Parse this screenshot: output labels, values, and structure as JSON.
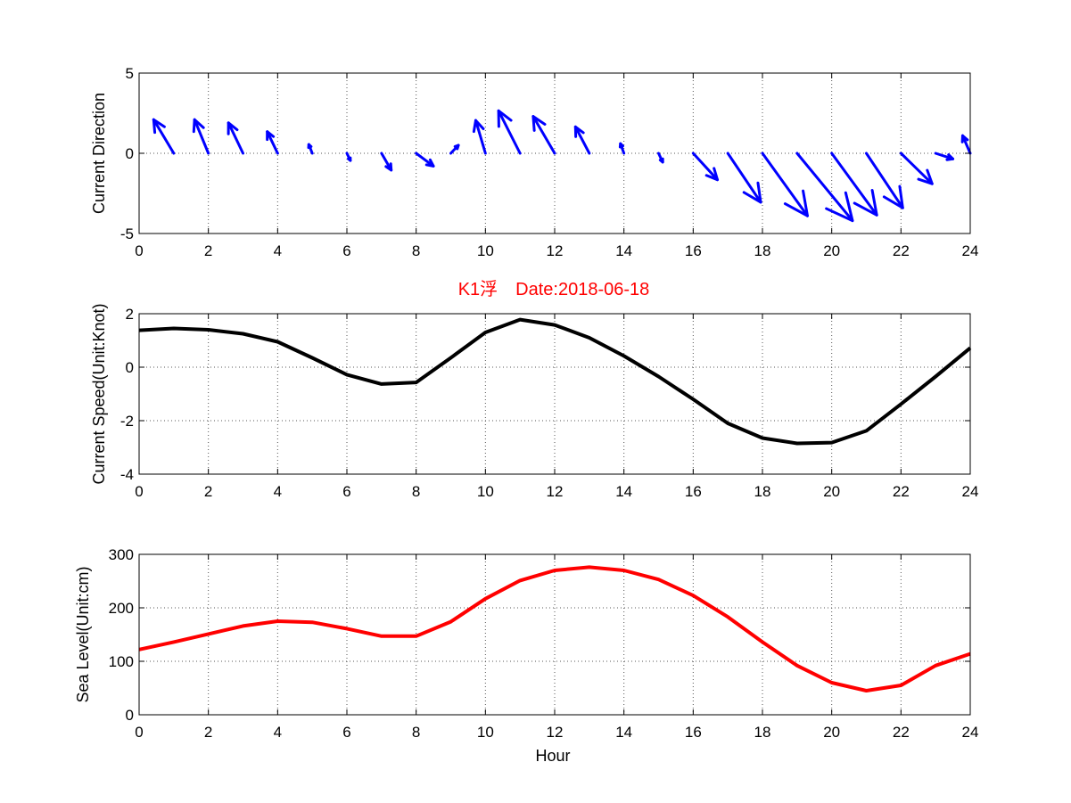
{
  "title": "K1浮　Date:2018-06-18",
  "colors": {
    "direction": "#0000ff",
    "speed": "#000000",
    "sealevel": "#ff0000",
    "title": "#ff0000"
  },
  "chart_data": [
    {
      "type": "quiver",
      "ylabel": "Current Direction",
      "xlim": [
        0,
        24
      ],
      "ylim": [
        -5,
        5
      ],
      "xticks": [
        "0",
        "2",
        "4",
        "6",
        "8",
        "10",
        "12",
        "14",
        "16",
        "18",
        "20",
        "22",
        "24"
      ],
      "yticks": [
        "5",
        "0",
        "-5"
      ],
      "grid": true,
      "x": [
        1,
        2,
        3,
        4,
        5,
        6,
        7,
        8,
        9,
        10,
        11,
        12,
        13,
        14,
        15,
        16,
        17,
        18,
        19,
        20,
        21,
        22,
        23,
        24
      ],
      "u": [
        -0.58,
        -0.4,
        -0.42,
        -0.3,
        -0.1,
        0.1,
        0.28,
        0.5,
        0.22,
        -0.28,
        -0.62,
        -0.62,
        -0.4,
        -0.1,
        0.12,
        0.7,
        0.95,
        1.3,
        1.6,
        1.3,
        1.05,
        0.9,
        0.5,
        -0.22
      ],
      "v": [
        2.1,
        2.1,
        1.9,
        1.35,
        0.55,
        -0.45,
        -1.05,
        -0.8,
        0.5,
        2.05,
        2.65,
        2.3,
        1.65,
        0.6,
        -0.55,
        -1.65,
        -3.05,
        -3.9,
        -4.2,
        -3.85,
        -3.4,
        -1.9,
        -0.35,
        1.1
      ]
    },
    {
      "type": "line",
      "ylabel": "Current Speed(Unit:Knot)",
      "xlim": [
        0,
        24
      ],
      "ylim": [
        -4,
        2
      ],
      "xticks": [
        "0",
        "2",
        "4",
        "6",
        "8",
        "10",
        "12",
        "14",
        "16",
        "18",
        "20",
        "22",
        "24"
      ],
      "yticks": [
        "2",
        "0",
        "-2",
        "-4"
      ],
      "grid": true,
      "x": [
        0,
        1,
        2,
        3,
        4,
        5,
        6,
        7,
        8,
        9,
        10,
        11,
        12,
        13,
        14,
        15,
        16,
        17,
        18,
        19,
        20,
        21,
        22,
        23,
        24
      ],
      "y": [
        1.38,
        1.45,
        1.4,
        1.25,
        0.95,
        0.35,
        -0.28,
        -0.63,
        -0.57,
        0.35,
        1.3,
        1.78,
        1.58,
        1.1,
        0.42,
        -0.35,
        -1.2,
        -2.1,
        -2.65,
        -2.85,
        -2.82,
        -2.38,
        -1.38,
        -0.35,
        0.72
      ]
    },
    {
      "type": "line",
      "ylabel": "Sea Level(Unit:cm)",
      "xlabel": "Hour",
      "xlim": [
        0,
        24
      ],
      "ylim": [
        0,
        300
      ],
      "xticks": [
        "0",
        "2",
        "4",
        "6",
        "8",
        "10",
        "12",
        "14",
        "16",
        "18",
        "20",
        "22",
        "24"
      ],
      "yticks": [
        "300",
        "200",
        "100",
        "0"
      ],
      "grid": true,
      "x": [
        0,
        1,
        2,
        3,
        4,
        5,
        6,
        7,
        8,
        9,
        10,
        11,
        12,
        13,
        14,
        15,
        16,
        17,
        18,
        19,
        20,
        21,
        22,
        23,
        24
      ],
      "y": [
        122,
        136,
        151,
        166,
        175,
        173,
        161,
        147,
        147,
        174,
        217,
        251,
        270,
        276,
        270,
        253,
        223,
        183,
        136,
        92,
        60,
        45,
        55,
        92,
        114
      ]
    }
  ]
}
